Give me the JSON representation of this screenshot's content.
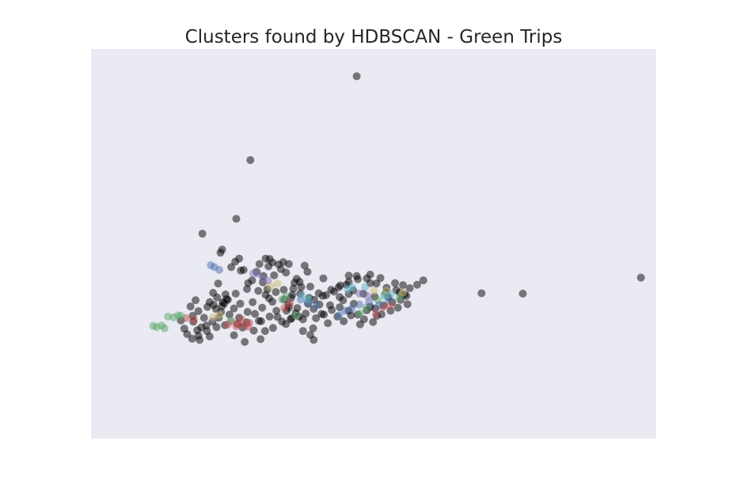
{
  "chart_data": {
    "type": "scatter",
    "title": "Clusters found by HDBSCAN - Green Trips",
    "xlabel": "",
    "ylabel": "",
    "axes_visible": false,
    "grid": false,
    "xlim": [
      0,
      100
    ],
    "ylim": [
      0,
      100
    ],
    "plot_background": "#eaeaf2",
    "point_alpha": 0.5,
    "series": [
      {
        "color": "#000000",
        "values": [
          [
            47.0,
            93.0
          ],
          [
            28.2,
            71.5
          ],
          [
            25.7,
            56.4
          ],
          [
            19.7,
            52.6
          ],
          [
            23.2,
            48.5
          ],
          [
            22.9,
            47.7
          ],
          [
            37.8,
            44.4
          ],
          [
            33.6,
            43.5
          ],
          [
            27.6,
            38.4
          ],
          [
            69.1,
            37.3
          ],
          [
            76.4,
            37.2
          ],
          [
            97.3,
            41.3
          ],
          [
            31.6,
            46.1
          ],
          [
            29.8,
            44.8
          ],
          [
            30.9,
            46.2
          ],
          [
            32.1,
            45.2
          ],
          [
            25.5,
            45.4
          ],
          [
            26.2,
            46.2
          ],
          [
            24.8,
            44.0
          ],
          [
            27.0,
            43.3
          ],
          [
            34.0,
            45.3
          ],
          [
            33.2,
            44.7
          ],
          [
            35.0,
            44.8
          ],
          [
            31.4,
            44.2
          ],
          [
            30.5,
            41.7
          ],
          [
            32.4,
            41.9
          ],
          [
            34.5,
            42.6
          ],
          [
            36.0,
            40.0
          ],
          [
            35.4,
            36.1
          ],
          [
            29.3,
            42.8
          ],
          [
            26.5,
            43.1
          ],
          [
            22.5,
            39.8
          ],
          [
            27.8,
            39.9
          ],
          [
            31.2,
            38.3
          ],
          [
            23.8,
            37.0
          ],
          [
            35.0,
            33.6
          ],
          [
            36.4,
            41.0
          ],
          [
            35.8,
            38.5
          ],
          [
            37.2,
            38.9
          ],
          [
            38.8,
            39.0
          ],
          [
            40.3,
            37.3
          ],
          [
            42.5,
            38.2
          ],
          [
            44.1,
            39.3
          ],
          [
            45.6,
            40.2
          ],
          [
            47.2,
            40.9
          ],
          [
            48.8,
            41.1
          ],
          [
            50.5,
            39.8
          ],
          [
            52.3,
            38.7
          ],
          [
            54.0,
            38.1
          ],
          [
            55.8,
            36.6
          ],
          [
            51.2,
            41.2
          ],
          [
            49.4,
            42.1
          ],
          [
            47.0,
            41.7
          ],
          [
            45.2,
            39.5
          ],
          [
            43.0,
            37.7
          ],
          [
            41.6,
            36.8
          ],
          [
            39.5,
            35.6
          ],
          [
            43.8,
            38.8
          ],
          [
            46.4,
            38.0
          ],
          [
            48.2,
            37.2
          ],
          [
            50.2,
            36.4
          ],
          [
            52.6,
            36.3
          ],
          [
            54.6,
            37.5
          ],
          [
            56.4,
            38.6
          ],
          [
            49.4,
            39.9
          ],
          [
            45.6,
            37.1
          ],
          [
            44.0,
            36.3
          ],
          [
            41.0,
            36.6
          ],
          [
            38.6,
            36.1
          ],
          [
            37.0,
            37.2
          ],
          [
            21.0,
            35.0
          ],
          [
            21.7,
            34.3
          ],
          [
            20.6,
            33.8
          ],
          [
            22.1,
            33.3
          ],
          [
            23.3,
            35.0
          ],
          [
            24.2,
            35.6
          ],
          [
            25.6,
            37.2
          ],
          [
            24.0,
            35.8
          ],
          [
            23.0,
            32.5
          ],
          [
            25.3,
            33.4
          ],
          [
            23.6,
            34.7
          ],
          [
            21.6,
            37.4
          ],
          [
            18.5,
            35.5
          ],
          [
            19.0,
            32.7
          ],
          [
            18.1,
            30.0
          ],
          [
            19.5,
            28.5
          ],
          [
            18.8,
            27.8
          ],
          [
            20.5,
            27.6
          ],
          [
            22.2,
            28.6
          ],
          [
            23.7,
            29.1
          ],
          [
            25.9,
            29.4
          ],
          [
            27.5,
            29.8
          ],
          [
            29.7,
            30.2
          ],
          [
            31.6,
            31.3
          ],
          [
            30.1,
            30.1
          ],
          [
            33.0,
            31.2
          ],
          [
            34.6,
            32.8
          ],
          [
            36.2,
            32.2
          ],
          [
            37.5,
            30.6
          ],
          [
            38.0,
            32.1
          ],
          [
            39.4,
            33.3
          ],
          [
            40.8,
            32.0
          ],
          [
            26.8,
            28.5
          ],
          [
            28.8,
            27.7
          ],
          [
            30.8,
            27.6
          ],
          [
            32.2,
            28.4
          ],
          [
            34.5,
            29.4
          ],
          [
            35.5,
            30.9
          ],
          [
            37.5,
            27.6
          ],
          [
            39.3,
            28.3
          ],
          [
            38.8,
            26.6
          ],
          [
            39.4,
            25.3
          ],
          [
            30.0,
            25.5
          ],
          [
            27.2,
            24.8
          ],
          [
            25.3,
            26.5
          ],
          [
            21.0,
            26.2
          ],
          [
            19.2,
            25.3
          ],
          [
            19.0,
            26.4
          ],
          [
            17.9,
            25.6
          ],
          [
            17.0,
            26.8
          ],
          [
            15.9,
            30.3
          ],
          [
            18.0,
            31.5
          ],
          [
            20.0,
            31.0
          ],
          [
            21.5,
            30.0
          ],
          [
            22.6,
            31.0
          ],
          [
            24.5,
            31.8
          ],
          [
            26.2,
            31.0
          ],
          [
            27.7,
            32.5
          ],
          [
            29.0,
            32.0
          ],
          [
            33.8,
            30.0
          ],
          [
            35.3,
            30.6
          ],
          [
            36.8,
            31.3
          ],
          [
            32.1,
            35.1
          ],
          [
            34.2,
            35.7
          ],
          [
            35.6,
            36.9
          ],
          [
            30.9,
            36.9
          ],
          [
            28.6,
            35.0
          ],
          [
            26.4,
            34.6
          ],
          [
            28.5,
            40.6
          ],
          [
            30.4,
            40.1
          ],
          [
            40.4,
            34.4
          ],
          [
            42.3,
            34.2
          ],
          [
            44.0,
            33.7
          ],
          [
            45.6,
            32.8
          ],
          [
            47.2,
            31.8
          ],
          [
            48.8,
            32.9
          ],
          [
            50.3,
            33.4
          ],
          [
            51.8,
            34.2
          ],
          [
            53.3,
            35.0
          ],
          [
            54.8,
            35.6
          ],
          [
            56.0,
            34.5
          ],
          [
            53.0,
            32.8
          ],
          [
            50.6,
            31.5
          ],
          [
            49.4,
            33.8
          ],
          [
            46.5,
            34.6
          ],
          [
            44.6,
            35.5
          ],
          [
            42.6,
            33.0
          ],
          [
            41.2,
            31.8
          ],
          [
            43.6,
            31.3
          ],
          [
            46.0,
            31.6
          ],
          [
            48.3,
            30.6
          ],
          [
            52.2,
            37.5
          ],
          [
            55.2,
            39.4
          ],
          [
            53.8,
            39.9
          ],
          [
            57.7,
            39.5
          ],
          [
            58.8,
            40.6
          ],
          [
            45.6,
            41.8
          ],
          [
            41.1,
            41.1
          ],
          [
            38.3,
            42.8
          ],
          [
            36.9,
            40.2
          ],
          [
            34.1,
            38.2
          ],
          [
            32.7,
            37.6
          ],
          [
            31.5,
            36.0
          ],
          [
            29.6,
            37.9
          ],
          [
            23.2,
            34.0
          ],
          [
            22.3,
            36.2
          ],
          [
            20.4,
            29.0
          ],
          [
            16.5,
            28.2
          ],
          [
            17.6,
            33.9
          ],
          [
            30.3,
            33.6
          ],
          [
            32.8,
            32.8
          ],
          [
            34.9,
            34.3
          ],
          [
            36.5,
            33.5
          ],
          [
            38.4,
            34.6
          ],
          [
            39.8,
            30.9
          ],
          [
            41.9,
            29.6
          ],
          [
            44.7,
            30.1
          ],
          [
            47.6,
            29.3
          ],
          [
            49.9,
            29.9
          ],
          [
            51.4,
            31.9
          ],
          [
            54.3,
            33.6
          ],
          [
            55.5,
            37.0
          ]
        ]
      },
      {
        "color": "#c44e52",
        "values": [
          [
            16.8,
            30.9
          ],
          [
            18.2,
            30.5
          ],
          [
            24.8,
            30.1
          ],
          [
            26.0,
            29.5
          ],
          [
            27.2,
            29.0
          ],
          [
            28.0,
            29.7
          ],
          [
            26.6,
            30.6
          ],
          [
            25.7,
            28.8
          ],
          [
            27.8,
            28.7
          ],
          [
            24.2,
            29.2
          ],
          [
            34.2,
            33.5
          ],
          [
            35.2,
            34.6
          ],
          [
            50.4,
            32.0
          ],
          [
            51.6,
            33.7
          ],
          [
            52.9,
            34.0
          ]
        ]
      },
      {
        "color": "#55a868",
        "values": [
          [
            12.5,
            29.0
          ],
          [
            13.0,
            28.3
          ],
          [
            11.6,
            28.6
          ],
          [
            11.0,
            28.9
          ],
          [
            13.6,
            31.3
          ],
          [
            14.6,
            31.1
          ],
          [
            15.4,
            31.6
          ],
          [
            15.9,
            31.5
          ],
          [
            24.7,
            30.3
          ],
          [
            33.8,
            35.7
          ],
          [
            34.5,
            36.5
          ],
          [
            36.3,
            31.6
          ],
          [
            47.6,
            32.1
          ],
          [
            48.7,
            33.6
          ],
          [
            50.8,
            35.5
          ],
          [
            51.9,
            37.0
          ],
          [
            54.6,
            36.2
          ]
        ]
      },
      {
        "color": "#4c72b0",
        "values": [
          [
            21.2,
            44.5
          ],
          [
            21.8,
            44.0
          ],
          [
            22.7,
            43.3
          ],
          [
            37.1,
            35.7
          ],
          [
            38.3,
            34.9
          ],
          [
            39.9,
            34.2
          ],
          [
            43.9,
            31.6
          ],
          [
            44.9,
            32.8
          ],
          [
            46.1,
            33.3
          ],
          [
            47.5,
            34.4
          ],
          [
            49.2,
            35.0
          ],
          [
            51.0,
            34.3
          ],
          [
            52.7,
            35.8
          ]
        ]
      },
      {
        "color": "#8172b2",
        "values": [
          [
            28.7,
            42.4
          ],
          [
            29.5,
            42.3
          ],
          [
            30.4,
            41.0
          ],
          [
            31.3,
            40.5
          ],
          [
            47.5,
            37.2
          ],
          [
            48.9,
            36.6
          ]
        ]
      },
      {
        "color": "#ccb974",
        "values": [
          [
            21.6,
            31.1
          ],
          [
            22.7,
            31.7
          ],
          [
            31.8,
            39.1
          ],
          [
            33.0,
            39.8
          ],
          [
            50.1,
            37.9
          ],
          [
            52.3,
            37.9
          ],
          [
            55.2,
            37.5
          ]
        ]
      },
      {
        "color": "#64b5cd",
        "values": [
          [
            37.4,
            36.6
          ],
          [
            38.5,
            35.7
          ],
          [
            45.4,
            38.2
          ],
          [
            46.2,
            38.9
          ],
          [
            48.5,
            38.9
          ],
          [
            52.0,
            36.5
          ],
          [
            53.2,
            37.2
          ]
        ]
      }
    ]
  }
}
